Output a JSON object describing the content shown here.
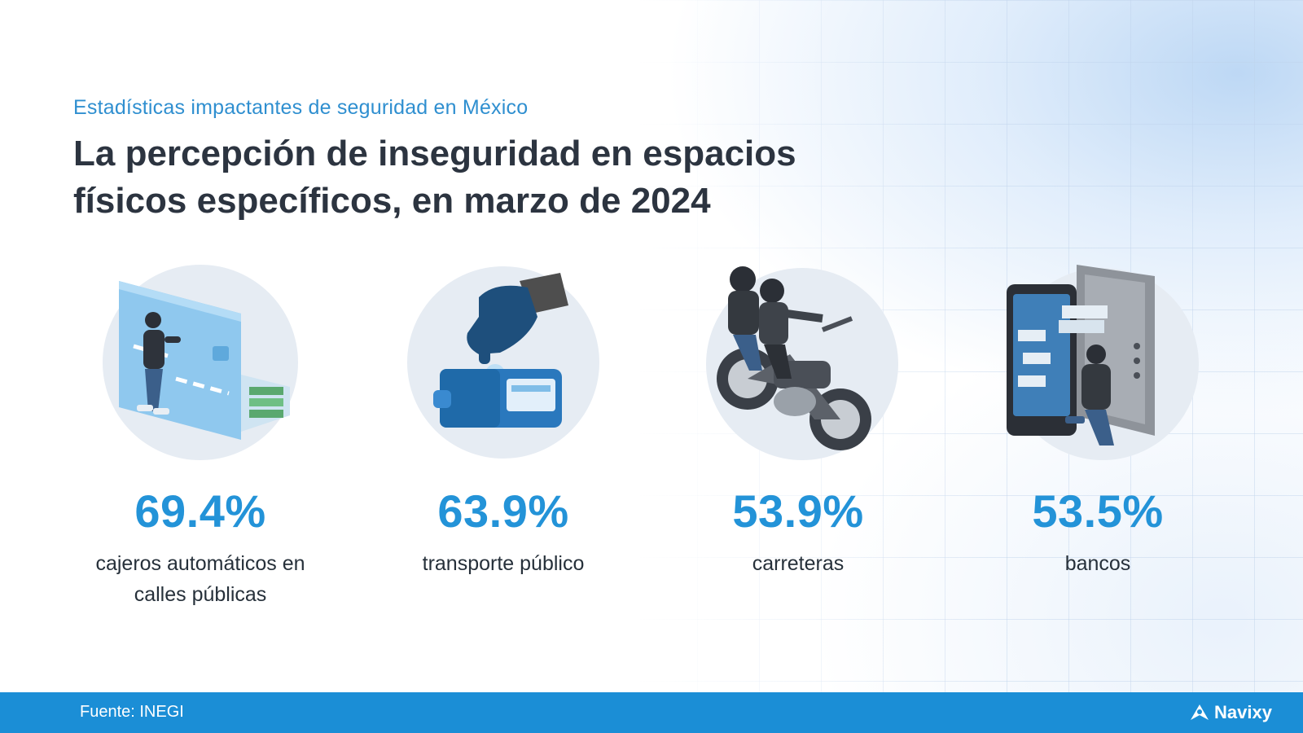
{
  "header": {
    "subtitle": "Estadísticas impactantes de seguridad en México",
    "title": "La percepción de inseguridad en espacios físicos específicos, en marzo de 2024"
  },
  "stats": [
    {
      "value": "69.4%",
      "label": "cajeros automáticos en calles públicas",
      "icon": "atm-card-thief-icon"
    },
    {
      "value": "63.9%",
      "label": "transporte público",
      "icon": "wallet-pickpocket-icon"
    },
    {
      "value": "53.9%",
      "label": "carreteras",
      "icon": "motorcycle-robbers-icon"
    },
    {
      "value": "53.5%",
      "label": "bancos",
      "icon": "bank-vault-thief-icon"
    }
  ],
  "footer": {
    "source": "Fuente: INEGI",
    "brand": "Navixy"
  },
  "colors": {
    "accent": "#2393d8",
    "title": "#2c3440",
    "footer": "#1b8ed6"
  }
}
